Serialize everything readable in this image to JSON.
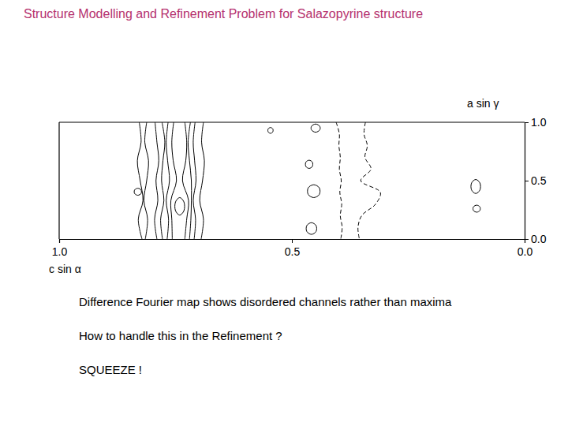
{
  "chart_data": {
    "type": "contour",
    "title": "Structure Modelling and Refinement Problem for Salazopyrine structure",
    "xlabel": "c sin α",
    "ylabel": "a sin γ",
    "xlim": [
      1.0,
      0.0
    ],
    "ylim": [
      0.0,
      1.0
    ],
    "xticks": [
      {
        "value": 1.0,
        "label": "1.0"
      },
      {
        "value": 0.5,
        "label": "0.5"
      },
      {
        "value": 0.0,
        "label": "0.0"
      }
    ],
    "yticks": [
      {
        "value": 0.0,
        "label": "0.0"
      },
      {
        "value": 0.5,
        "label": "0.5"
      },
      {
        "value": 1.0,
        "label": "1.0"
      }
    ],
    "annotations": [
      "Difference Fourier map shows disordered channels rather than maxima",
      "How to handle this in the Refinement ?",
      "SQUEEZE !"
    ],
    "series": [
      {
        "type": "line",
        "line_style": "solid",
        "color": "#000000",
        "x": [
          0.822,
          0.83,
          0.82,
          0.826,
          0.832,
          0.824,
          0.828
        ],
        "values": [
          0.0,
          0.17,
          0.33,
          0.5,
          0.67,
          0.83,
          1.0
        ]
      },
      {
        "type": "line",
        "line_style": "solid",
        "color": "#000000",
        "x": [
          0.815,
          0.81,
          0.818,
          0.812,
          0.808,
          0.816,
          0.812
        ],
        "values": [
          0.0,
          0.17,
          0.33,
          0.5,
          0.67,
          0.83,
          1.0
        ]
      },
      {
        "type": "line",
        "line_style": "solid",
        "color": "#000000",
        "x": [
          0.79,
          0.795,
          0.788,
          0.792,
          0.786,
          0.79,
          0.794
        ],
        "values": [
          0.0,
          0.17,
          0.33,
          0.5,
          0.67,
          0.83,
          1.0
        ]
      },
      {
        "type": "line",
        "line_style": "solid",
        "color": "#000000",
        "x": [
          0.778,
          0.782,
          0.775,
          0.78,
          0.777,
          0.773,
          0.779
        ],
        "values": [
          0.0,
          0.17,
          0.33,
          0.5,
          0.67,
          0.83,
          1.0
        ]
      },
      {
        "type": "line",
        "line_style": "solid",
        "color": "#000000",
        "x": [
          0.768,
          0.765,
          0.77,
          0.763,
          0.767,
          0.77,
          0.766
        ],
        "values": [
          0.0,
          0.17,
          0.33,
          0.5,
          0.67,
          0.83,
          1.0
        ]
      },
      {
        "type": "line",
        "line_style": "solid",
        "color": "#000000",
        "x": [
          0.757,
          0.758,
          0.76,
          0.748,
          0.755,
          0.758,
          0.754
        ],
        "values": [
          0.0,
          0.17,
          0.33,
          0.5,
          0.67,
          0.83,
          1.0
        ]
      },
      {
        "type": "line",
        "line_style": "solid",
        "color": "#000000",
        "x": [
          0.73,
          0.726,
          0.722,
          0.735,
          0.728,
          0.726,
          0.73
        ],
        "values": [
          0.0,
          0.17,
          0.33,
          0.5,
          0.67,
          0.83,
          1.0
        ]
      },
      {
        "type": "line",
        "line_style": "solid",
        "color": "#000000",
        "x": [
          0.72,
          0.717,
          0.716,
          0.716,
          0.72,
          0.723,
          0.718
        ],
        "values": [
          0.0,
          0.17,
          0.33,
          0.5,
          0.67,
          0.83,
          1.0
        ]
      },
      {
        "type": "line",
        "line_style": "solid",
        "color": "#000000",
        "x": [
          0.71,
          0.707,
          0.712,
          0.706,
          0.709,
          0.712,
          0.708
        ],
        "values": [
          0.0,
          0.17,
          0.33,
          0.5,
          0.67,
          0.83,
          1.0
        ]
      },
      {
        "type": "line",
        "line_style": "solid",
        "color": "#000000",
        "x": [
          0.695,
          0.69,
          0.698,
          0.692,
          0.688,
          0.694,
          0.69
        ],
        "values": [
          0.0,
          0.17,
          0.33,
          0.5,
          0.67,
          0.83,
          1.0
        ]
      },
      {
        "type": "loop",
        "line_style": "solid",
        "color": "#000000",
        "x": [
          0.831,
          0.824,
          0.824,
          0.831,
          0.838,
          0.838
        ],
        "values": [
          0.435,
          0.42,
          0.39,
          0.375,
          0.39,
          0.42
        ]
      },
      {
        "type": "loop",
        "line_style": "solid",
        "color": "#000000",
        "x": [
          0.741,
          0.732,
          0.732,
          0.741,
          0.75,
          0.75
        ],
        "values": [
          0.355,
          0.318,
          0.242,
          0.205,
          0.242,
          0.318
        ]
      },
      {
        "type": "loop",
        "line_style": "solid",
        "color": "#000000",
        "x": [
          0.546,
          0.541,
          0.541,
          0.546,
          0.551,
          0.551
        ],
        "values": [
          0.955,
          0.943,
          0.918,
          0.905,
          0.918,
          0.943
        ]
      },
      {
        "type": "loop",
        "line_style": "solid",
        "color": "#000000",
        "x": [
          0.449,
          0.44,
          0.44,
          0.449,
          0.458,
          0.458
        ],
        "values": [
          0.985,
          0.965,
          0.935,
          0.915,
          0.935,
          0.965
        ]
      },
      {
        "type": "loop",
        "line_style": "solid",
        "color": "#000000",
        "x": [
          0.463,
          0.456,
          0.456,
          0.463,
          0.47,
          0.47
        ],
        "values": [
          0.675,
          0.658,
          0.622,
          0.605,
          0.622,
          0.658
        ]
      },
      {
        "type": "loop",
        "line_style": "solid",
        "color": "#000000",
        "x": [
          0.453,
          0.441,
          0.441,
          0.453,
          0.465,
          0.465
        ],
        "values": [
          0.465,
          0.438,
          0.382,
          0.355,
          0.382,
          0.438
        ]
      },
      {
        "type": "loop",
        "line_style": "solid",
        "color": "#000000",
        "x": [
          0.458,
          0.448,
          0.448,
          0.458,
          0.468,
          0.468
        ],
        "values": [
          0.14,
          0.115,
          0.065,
          0.04,
          0.065,
          0.115
        ]
      },
      {
        "type": "loop",
        "line_style": "solid",
        "color": "#000000",
        "x": [
          0.105,
          0.096,
          0.096,
          0.105,
          0.114,
          0.114
        ],
        "values": [
          0.51,
          0.48,
          0.42,
          0.39,
          0.42,
          0.48
        ]
      },
      {
        "type": "loop",
        "line_style": "solid",
        "color": "#000000",
        "x": [
          0.103,
          0.096,
          0.096,
          0.103,
          0.11,
          0.11
        ],
        "values": [
          0.29,
          0.275,
          0.245,
          0.23,
          0.245,
          0.275
        ]
      },
      {
        "type": "line",
        "line_style": "dashed",
        "color": "#000000",
        "x": [
          0.405,
          0.398,
          0.399,
          0.396,
          0.398,
          0.394,
          0.397,
          0.393,
          0.396,
          0.392,
          0.395
        ],
        "values": [
          1.0,
          0.9,
          0.8,
          0.7,
          0.6,
          0.5,
          0.4,
          0.3,
          0.2,
          0.1,
          0.0
        ]
      },
      {
        "type": "line",
        "line_style": "dashed",
        "color": "#000000",
        "x": [
          0.342,
          0.345,
          0.338,
          0.343,
          0.33,
          0.352,
          0.31,
          0.32,
          0.35,
          0.358,
          0.355
        ],
        "values": [
          1.0,
          0.9,
          0.8,
          0.7,
          0.6,
          0.5,
          0.4,
          0.3,
          0.2,
          0.1,
          0.0
        ]
      }
    ]
  }
}
